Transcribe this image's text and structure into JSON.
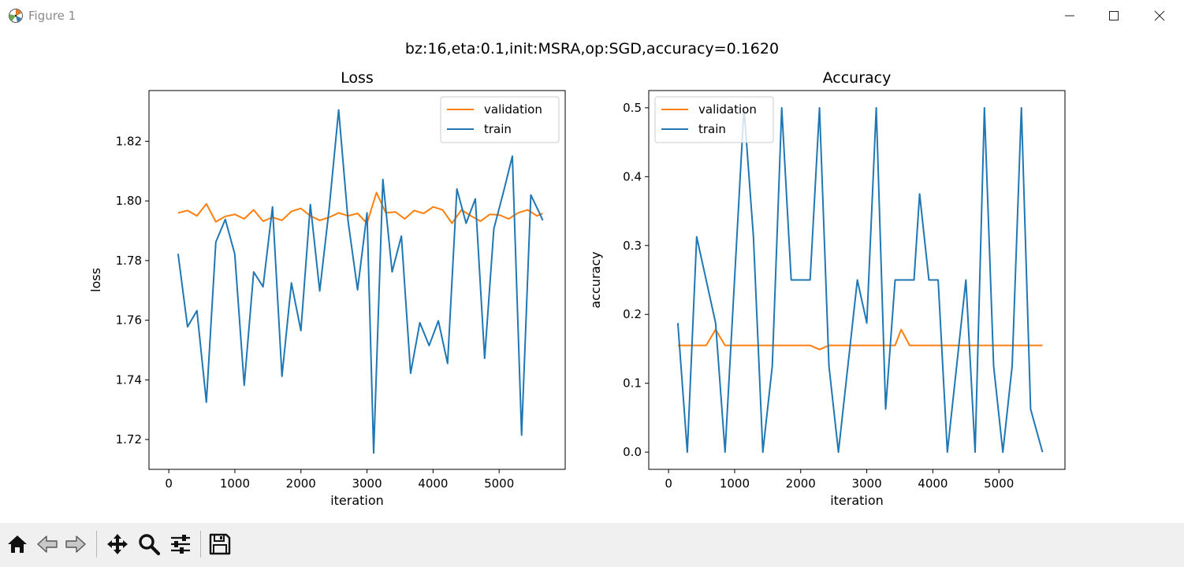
{
  "window": {
    "title": "Figure 1"
  },
  "figure": {
    "suptitle": "bz:16,eta:0.1,init:MSRA,op:SGD,accuracy=0.1620"
  },
  "toolbar": {
    "buttons": [
      {
        "name": "home-button",
        "icon": "home-icon"
      },
      {
        "name": "back-button",
        "icon": "arrow-left-icon"
      },
      {
        "name": "forward-button",
        "icon": "arrow-right-icon"
      },
      {
        "name": "pan-button",
        "icon": "move-icon"
      },
      {
        "name": "zoom-button",
        "icon": "magnifier-icon"
      },
      {
        "name": "configure-subplots-button",
        "icon": "sliders-icon"
      },
      {
        "name": "save-button",
        "icon": "floppy-disk-icon"
      }
    ]
  },
  "colors": {
    "train": "#1f77b4",
    "validation": "#ff7f0e"
  },
  "chart_data": [
    {
      "type": "line",
      "title": "Loss",
      "xlabel": "iteration",
      "ylabel": "loss",
      "xlim": [
        -300,
        6000
      ],
      "ylim": [
        1.71,
        1.837
      ],
      "xticks": [
        0,
        1000,
        2000,
        3000,
        4000,
        5000
      ],
      "yticks": [
        1.72,
        1.74,
        1.76,
        1.78,
        1.8,
        1.82
      ],
      "ytick_labels": [
        "1.72",
        "1.74",
        "1.76",
        "1.78",
        "1.80",
        "1.82"
      ],
      "legend": {
        "position": "upper right",
        "entries": [
          "validation",
          "train"
        ]
      },
      "series": [
        {
          "name": "validation",
          "x": [
            140,
            283,
            426,
            569,
            712,
            855,
            998,
            1141,
            1284,
            1427,
            1570,
            1713,
            1856,
            1999,
            2142,
            2285,
            2428,
            2571,
            2714,
            2857,
            3000,
            3143,
            3286,
            3429,
            3572,
            3715,
            3858,
            4001,
            4144,
            4287,
            4430,
            4573,
            4716,
            4859,
            5002,
            5145,
            5288,
            5431,
            5574,
            5660
          ],
          "y": [
            1.796,
            1.7968,
            1.795,
            1.799,
            1.793,
            1.7948,
            1.7955,
            1.794,
            1.797,
            1.7932,
            1.7945,
            1.7935,
            1.7965,
            1.7975,
            1.795,
            1.7935,
            1.7945,
            1.796,
            1.795,
            1.7958,
            1.7925,
            1.8028,
            1.796,
            1.7963,
            1.794,
            1.7968,
            1.7958,
            1.798,
            1.797,
            1.7925,
            1.797,
            1.795,
            1.7932,
            1.7955,
            1.7953,
            1.794,
            1.796,
            1.797,
            1.795,
            1.7958
          ]
        },
        {
          "name": "train",
          "x": [
            140,
            283,
            426,
            569,
            712,
            855,
            998,
            1141,
            1284,
            1427,
            1570,
            1713,
            1856,
            1999,
            2142,
            2285,
            2428,
            2571,
            2714,
            2857,
            3000,
            3100,
            3240,
            3380,
            3520,
            3660,
            3800,
            3940,
            4080,
            4220,
            4360,
            4500,
            4640,
            4780,
            4920,
            5060,
            5200,
            5340,
            5480,
            5620,
            5660
          ],
          "y": [
            1.7823,
            1.7578,
            1.7632,
            1.7325,
            1.7862,
            1.7938,
            1.7822,
            1.7382,
            1.7762,
            1.7712,
            1.798,
            1.7412,
            1.7725,
            1.7565,
            1.7988,
            1.7698,
            1.7975,
            1.8305,
            1.7932,
            1.7702,
            1.796,
            1.7155,
            1.8072,
            1.7762,
            1.7882,
            1.7422,
            1.7592,
            1.7515,
            1.7598,
            1.7455,
            1.804,
            1.7925,
            1.8007,
            1.7472,
            1.7907,
            1.8025,
            1.815,
            1.7215,
            1.802,
            1.7955,
            1.7935
          ]
        }
      ]
    },
    {
      "type": "line",
      "title": "Accuracy",
      "xlabel": "iteration",
      "ylabel": "accuracy",
      "xlim": [
        -300,
        6000
      ],
      "ylim": [
        -0.025,
        0.525
      ],
      "xticks": [
        0,
        1000,
        2000,
        3000,
        4000,
        5000
      ],
      "yticks": [
        0.0,
        0.1,
        0.2,
        0.3,
        0.4,
        0.5
      ],
      "ytick_labels": [
        "0.0",
        "0.1",
        "0.2",
        "0.3",
        "0.4",
        "0.5"
      ],
      "legend": {
        "position": "upper left",
        "entries": [
          "validation",
          "train"
        ]
      },
      "series": [
        {
          "name": "validation",
          "x": [
            140,
            283,
            426,
            569,
            712,
            855,
            998,
            1141,
            1284,
            1427,
            1570,
            1713,
            1856,
            1999,
            2142,
            2285,
            2428,
            2571,
            2714,
            2857,
            3000,
            3143,
            3286,
            3429,
            3520,
            3650,
            3800,
            3950,
            4100,
            4250,
            4400,
            4550,
            4700,
            4850,
            5000,
            5150,
            5300,
            5450,
            5600,
            5660
          ],
          "y": [
            0.155,
            0.155,
            0.155,
            0.155,
            0.178,
            0.155,
            0.155,
            0.155,
            0.155,
            0.155,
            0.155,
            0.155,
            0.155,
            0.155,
            0.155,
            0.149,
            0.155,
            0.155,
            0.155,
            0.155,
            0.155,
            0.155,
            0.155,
            0.155,
            0.178,
            0.155,
            0.155,
            0.155,
            0.155,
            0.155,
            0.155,
            0.155,
            0.155,
            0.155,
            0.155,
            0.155,
            0.155,
            0.155,
            0.155,
            0.155
          ]
        },
        {
          "name": "train",
          "x": [
            140,
            283,
            426,
            712,
            855,
            1141,
            1284,
            1427,
            1570,
            1713,
            1856,
            1999,
            2142,
            2285,
            2428,
            2571,
            2714,
            2857,
            3000,
            3143,
            3286,
            3429,
            3572,
            3715,
            3800,
            3940,
            4080,
            4220,
            4360,
            4500,
            4640,
            4780,
            4920,
            5060,
            5200,
            5340,
            5480,
            5660
          ],
          "y": [
            0.1875,
            0.0,
            0.3125,
            0.1875,
            0.0,
            0.5,
            0.3125,
            0.0,
            0.125,
            0.5,
            0.25,
            0.25,
            0.25,
            0.5,
            0.125,
            0.0,
            0.125,
            0.25,
            0.1875,
            0.5,
            0.0625,
            0.25,
            0.25,
            0.25,
            0.375,
            0.25,
            0.25,
            0.0,
            0.125,
            0.25,
            0.0,
            0.5,
            0.125,
            0.0,
            0.125,
            0.5,
            0.0625,
            0.0
          ]
        }
      ]
    }
  ]
}
